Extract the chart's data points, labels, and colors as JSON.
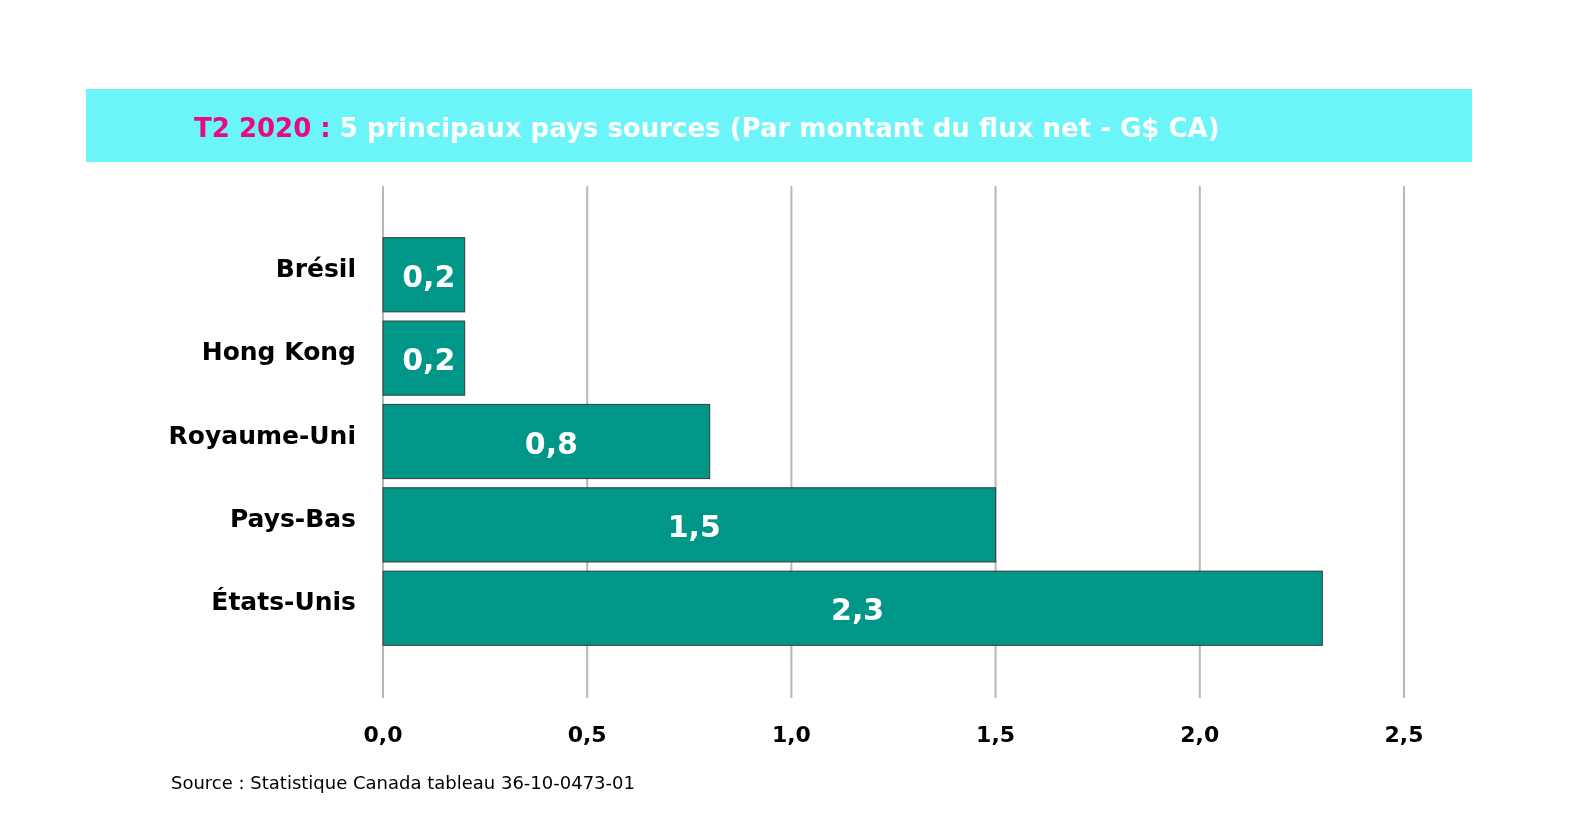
{
  "chart_data": {
    "type": "bar",
    "orientation": "horizontal",
    "title": "T2 2020 : 5 principaux pays sources (Par montant du flux net - G$ CA)",
    "categories": [
      "Brésil",
      "Hong Kong",
      "Royaume-Uni",
      "Pays-Bas",
      "États-Unis"
    ],
    "values": [
      0.2,
      0.2,
      0.8,
      1.5,
      2.3
    ],
    "color": "#009688",
    "xlim": [
      0,
      2.5
    ],
    "xticks": [
      {
        "value": 0,
        "label": "0,0"
      },
      {
        "value": 0.5,
        "label": "0,5"
      },
      {
        "value": 1,
        "label": "1,0"
      },
      {
        "value": 1.5,
        "label": "1,5"
      },
      {
        "value": 2,
        "label": "2,0"
      },
      {
        "value": 2.5,
        "label": "2,5"
      }
    ],
    "grid": "x",
    "value_labels": [
      "0,2",
      "0,2",
      "0,8",
      "1,5",
      "2,3"
    ],
    "annotations": [
      "Source : Statistique Canada tableau 36-10-0473-01"
    ]
  }
}
